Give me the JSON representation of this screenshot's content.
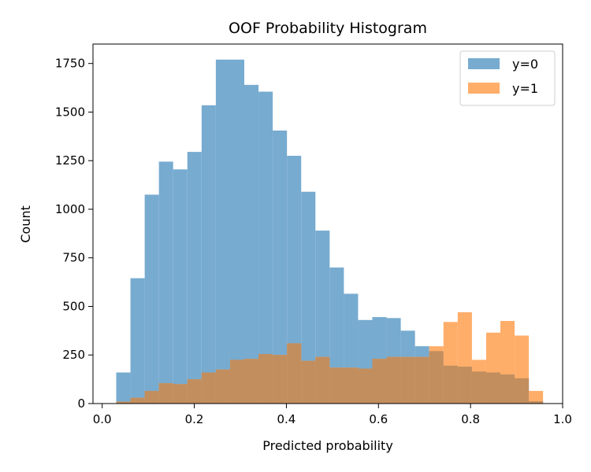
{
  "chart_data": {
    "type": "bar",
    "title": "OOF Probability Histogram",
    "xlabel": "Predicted probability",
    "ylabel": "Count",
    "xlim": [
      -0.02,
      1.0
    ],
    "ylim": [
      0,
      1850
    ],
    "x_ticks": [
      0.0,
      0.2,
      0.4,
      0.6,
      0.8,
      1.0
    ],
    "x_tick_labels": [
      "0.0",
      "0.2",
      "0.4",
      "0.6",
      "0.8",
      "1.0"
    ],
    "y_ticks": [
      0,
      250,
      500,
      750,
      1000,
      1250,
      1500,
      1750
    ],
    "y_tick_labels": [
      "0",
      "250",
      "500",
      "750",
      "1000",
      "1250",
      "1500",
      "1750"
    ],
    "legend_position": "top-right",
    "grid": false,
    "overlap_color": "#c28e5e",
    "series": [
      {
        "name": "y=0",
        "color": "#77abd0",
        "bin_start": 0.0305,
        "bin_width": 0.0309,
        "values": [
          160,
          645,
          1075,
          1245,
          1205,
          1295,
          1535,
          1770,
          1770,
          1640,
          1605,
          1405,
          1275,
          1090,
          890,
          700,
          565,
          430,
          445,
          440,
          375,
          295,
          270,
          195,
          190,
          165,
          160,
          150,
          130,
          12
        ]
      },
      {
        "name": "y=1",
        "color": "#ffae6a",
        "bin_start": 0.0305,
        "bin_width": 0.0309,
        "values": [
          10,
          30,
          65,
          105,
          100,
          125,
          160,
          175,
          225,
          230,
          255,
          250,
          310,
          220,
          240,
          185,
          185,
          180,
          230,
          240,
          240,
          240,
          295,
          420,
          470,
          225,
          365,
          425,
          350,
          65
        ]
      }
    ]
  }
}
